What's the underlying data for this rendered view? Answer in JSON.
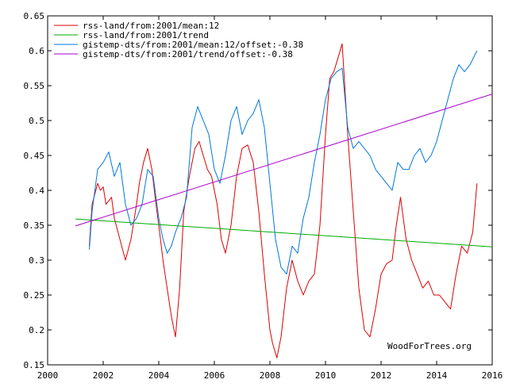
{
  "chart_data": {
    "type": "line",
    "title": "",
    "xlabel": "",
    "ylabel": "",
    "xlim": [
      2000,
      2016
    ],
    "ylim": [
      0.15,
      0.65
    ],
    "x_ticks": [
      2000,
      2002,
      2004,
      2006,
      2008,
      2010,
      2012,
      2014,
      2016
    ],
    "x_tick_labels": [
      "2000",
      "2002",
      "2004",
      "2006",
      "2008",
      "2010",
      "2012",
      "2014",
      "2016"
    ],
    "y_ticks": [
      0.15,
      0.2,
      0.25,
      0.3,
      0.35,
      0.4,
      0.45,
      0.5,
      0.55,
      0.6,
      0.65
    ],
    "y_tick_labels": [
      "0.15",
      "0.2",
      "0.25",
      "0.3",
      "0.35",
      "0.4",
      "0.45",
      "0.5",
      "0.55",
      "0.6",
      "0.65"
    ],
    "grid": false,
    "legend_position": "top-left",
    "watermark": "WoodForTrees.org",
    "series": [
      {
        "name": "rss-land/from:2001/mean:12",
        "color": "#dd0000",
        "x": [
          2001.5,
          2001.6,
          2001.8,
          2001.9,
          2002.0,
          2002.1,
          2002.3,
          2002.4,
          2002.6,
          2002.8,
          2003.0,
          2003.2,
          2003.3,
          2003.45,
          2003.6,
          2003.75,
          2003.9,
          2004.0,
          2004.15,
          2004.3,
          2004.45,
          2004.6,
          2004.75,
          2004.9,
          2005.1,
          2005.3,
          2005.45,
          2005.6,
          2005.75,
          2005.9,
          2006.1,
          2006.25,
          2006.4,
          2006.6,
          2006.8,
          2007.0,
          2007.2,
          2007.4,
          2007.6,
          2007.8,
          2008.0,
          2008.1,
          2008.25,
          2008.4,
          2008.6,
          2008.8,
          2009.0,
          2009.2,
          2009.4,
          2009.6,
          2009.8,
          2010.0,
          2010.15,
          2010.3,
          2010.45,
          2010.6,
          2010.8,
          2011.0,
          2011.2,
          2011.4,
          2011.6,
          2011.8,
          2012.0,
          2012.2,
          2012.4,
          2012.55,
          2012.7,
          2012.9,
          2013.1,
          2013.3,
          2013.5,
          2013.7,
          2013.9,
          2014.1,
          2014.3,
          2014.5,
          2014.7,
          2014.9,
          2015.1,
          2015.3,
          2015.45
        ],
        "y": [
          0.32,
          0.38,
          0.41,
          0.4,
          0.405,
          0.38,
          0.39,
          0.36,
          0.33,
          0.3,
          0.33,
          0.38,
          0.41,
          0.44,
          0.46,
          0.43,
          0.38,
          0.35,
          0.3,
          0.26,
          0.22,
          0.19,
          0.26,
          0.37,
          0.42,
          0.46,
          0.47,
          0.45,
          0.43,
          0.42,
          0.38,
          0.33,
          0.31,
          0.35,
          0.42,
          0.46,
          0.465,
          0.44,
          0.37,
          0.28,
          0.2,
          0.18,
          0.16,
          0.19,
          0.26,
          0.3,
          0.27,
          0.25,
          0.27,
          0.28,
          0.35,
          0.48,
          0.56,
          0.57,
          0.59,
          0.61,
          0.48,
          0.37,
          0.26,
          0.2,
          0.19,
          0.23,
          0.28,
          0.295,
          0.3,
          0.35,
          0.39,
          0.33,
          0.3,
          0.28,
          0.26,
          0.27,
          0.25,
          0.25,
          0.24,
          0.23,
          0.28,
          0.32,
          0.31,
          0.34,
          0.41
        ]
      },
      {
        "name": "rss-land/from:2001/trend",
        "color": "#00aa00",
        "x": [
          2001,
          2016
        ],
        "y": [
          0.359,
          0.319
        ]
      },
      {
        "name": "gistemp-dts/from:2001/mean:12/offset:-0.38",
        "color": "#0077dd",
        "x": [
          2001.5,
          2001.6,
          2001.8,
          2002.0,
          2002.2,
          2002.4,
          2002.6,
          2002.8,
          2003.0,
          2003.2,
          2003.4,
          2003.6,
          2003.8,
          2004.0,
          2004.15,
          2004.3,
          2004.45,
          2004.6,
          2004.8,
          2005.0,
          2005.2,
          2005.4,
          2005.6,
          2005.8,
          2006.0,
          2006.2,
          2006.4,
          2006.6,
          2006.8,
          2007.0,
          2007.2,
          2007.4,
          2007.6,
          2007.8,
          2008.0,
          2008.2,
          2008.4,
          2008.6,
          2008.8,
          2009.0,
          2009.2,
          2009.4,
          2009.6,
          2009.8,
          2010.0,
          2010.2,
          2010.4,
          2010.6,
          2010.8,
          2011.0,
          2011.2,
          2011.4,
          2011.6,
          2011.8,
          2012.0,
          2012.2,
          2012.4,
          2012.6,
          2012.8,
          2013.0,
          2013.2,
          2013.4,
          2013.6,
          2013.8,
          2014.0,
          2014.2,
          2014.4,
          2014.6,
          2014.8,
          2015.0,
          2015.2,
          2015.45
        ],
        "y": [
          0.315,
          0.37,
          0.43,
          0.44,
          0.455,
          0.42,
          0.44,
          0.38,
          0.35,
          0.36,
          0.38,
          0.43,
          0.42,
          0.36,
          0.33,
          0.31,
          0.32,
          0.34,
          0.36,
          0.39,
          0.49,
          0.52,
          0.5,
          0.48,
          0.43,
          0.41,
          0.45,
          0.5,
          0.52,
          0.48,
          0.5,
          0.51,
          0.53,
          0.49,
          0.41,
          0.33,
          0.29,
          0.28,
          0.32,
          0.31,
          0.36,
          0.39,
          0.44,
          0.48,
          0.53,
          0.56,
          0.57,
          0.575,
          0.49,
          0.46,
          0.47,
          0.46,
          0.45,
          0.43,
          0.42,
          0.41,
          0.4,
          0.44,
          0.43,
          0.43,
          0.45,
          0.46,
          0.44,
          0.45,
          0.47,
          0.5,
          0.53,
          0.56,
          0.58,
          0.57,
          0.58,
          0.6
        ]
      },
      {
        "name": "gistemp-dts/from:2001/trend/offset:-0.38",
        "color": "#aa00cc",
        "x": [
          2001,
          2016
        ],
        "y": [
          0.349,
          0.538
        ]
      }
    ]
  }
}
